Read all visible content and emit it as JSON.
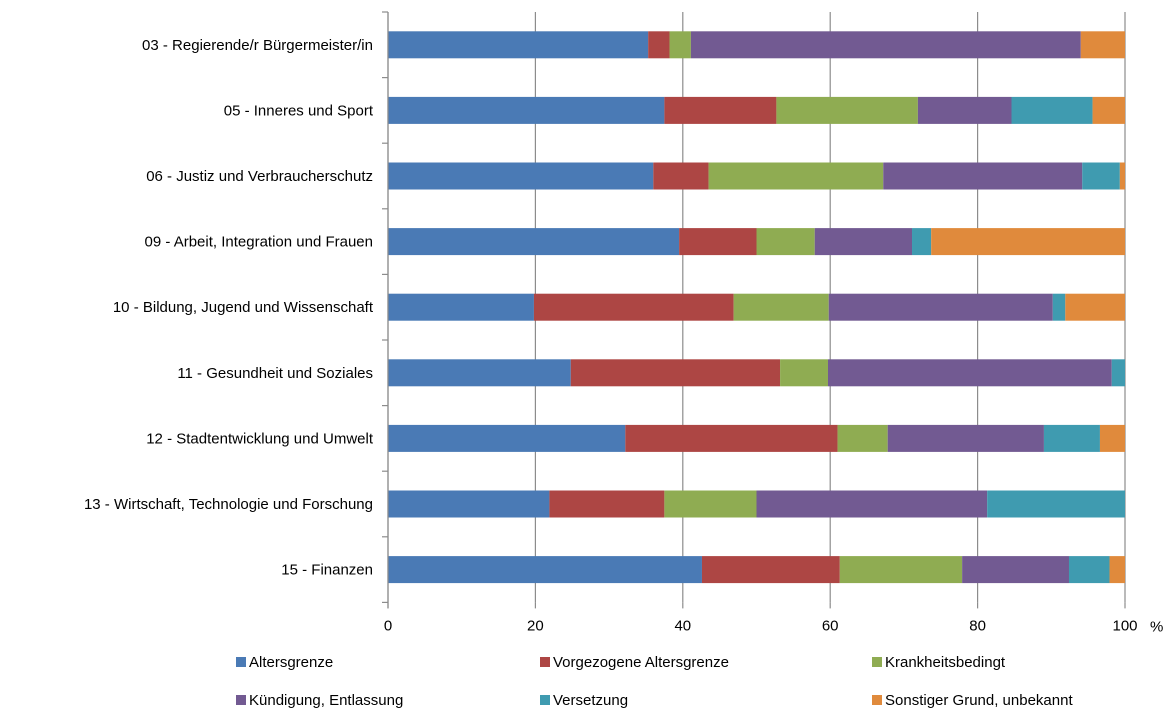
{
  "chart_data": {
    "type": "bar",
    "orientation": "horizontal",
    "stacked": true,
    "categories": [
      "03 - Regierende/r Bürgermeister/in",
      "05 - Inneres und Sport",
      "06 - Justiz und Verbraucherschutz",
      "09 - Arbeit, Integration und Frauen",
      "10 - Bildung, Jugend und Wissenschaft",
      "11 - Gesundheit und Soziales",
      "12 - Stadtentwicklung und Umwelt",
      "13 - Wirtschaft, Technologie und Forschung",
      "15 - Finanzen"
    ],
    "series": [
      {
        "name": "Altersgrenze",
        "color": "#4a7ab5",
        "values": [
          35.3,
          37.5,
          36.0,
          39.5,
          19.8,
          24.8,
          32.2,
          21.9,
          42.6
        ]
      },
      {
        "name": "Vorgezogene Altersgrenze",
        "color": "#ad4644",
        "values": [
          2.9,
          15.2,
          7.5,
          10.5,
          27.1,
          28.4,
          28.8,
          15.6,
          18.7
        ]
      },
      {
        "name": "Krankheitsbedingt",
        "color": "#8fac52",
        "values": [
          2.9,
          19.2,
          23.7,
          7.9,
          12.9,
          6.5,
          6.8,
          12.5,
          16.6
        ]
      },
      {
        "name": "Kündigung, Entlassung",
        "color": "#725a92",
        "values": [
          52.9,
          12.7,
          27.0,
          13.2,
          30.4,
          38.5,
          21.2,
          31.3,
          14.5
        ]
      },
      {
        "name": "Versetzung",
        "color": "#3f9bb0",
        "values": [
          0.0,
          11.0,
          5.1,
          2.6,
          1.7,
          1.8,
          7.6,
          18.7,
          5.5
        ]
      },
      {
        "name": "Sonstiger Grund, unbekannt",
        "color": "#e08a3c",
        "values": [
          6.0,
          4.4,
          0.7,
          26.3,
          8.1,
          0.0,
          3.4,
          0.0,
          2.1
        ]
      }
    ],
    "xlim": [
      0,
      100
    ],
    "xticks": [
      "0",
      "20",
      "40",
      "60",
      "80",
      "100"
    ],
    "xunit": "%",
    "grid": "vertical",
    "legend": "bottom"
  }
}
